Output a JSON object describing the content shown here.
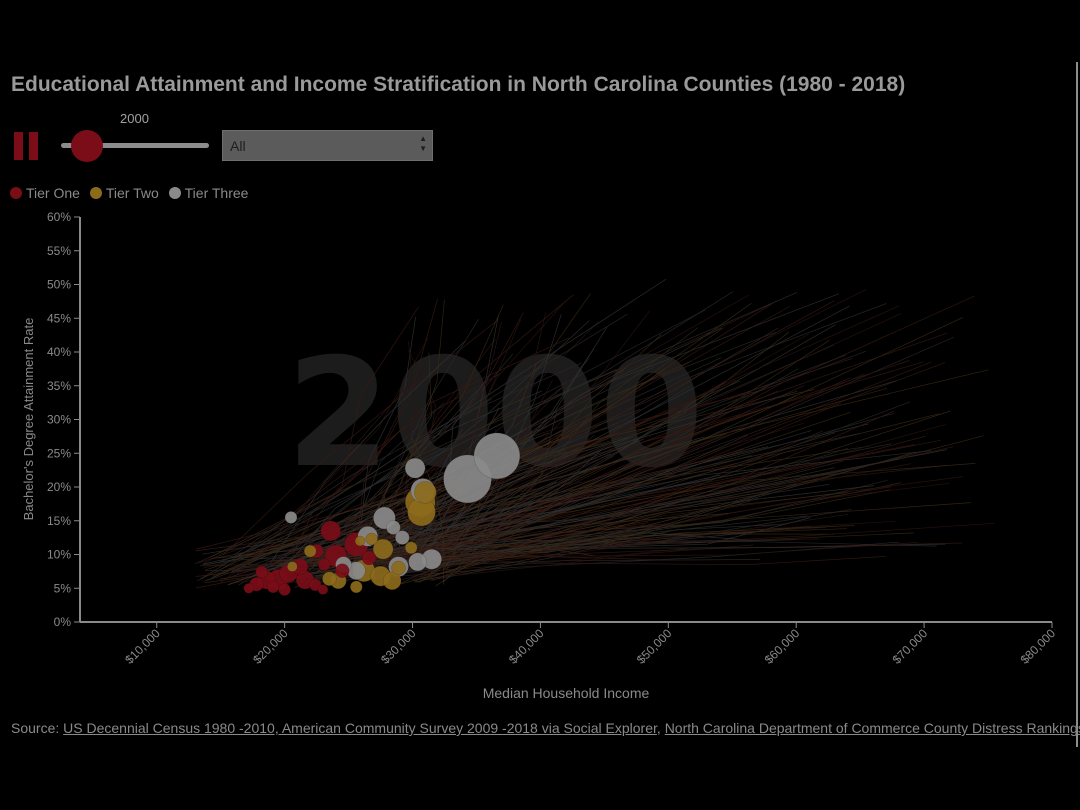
{
  "page": {
    "title": "Educational Attainment and Income Stratification in North Carolina Counties (1980 - 2018)"
  },
  "controls": {
    "play_state": "playing",
    "year": "2000",
    "slider": {
      "min": 1980,
      "max": 2018,
      "value": 2000
    },
    "county_select": {
      "value": "All"
    }
  },
  "legend": {
    "items": [
      {
        "label": "Tier One",
        "color": "#7a0d18"
      },
      {
        "label": "Tier Two",
        "color": "#8c6a1c"
      },
      {
        "label": "Tier Three",
        "color": "#8a8a8a"
      }
    ]
  },
  "source": {
    "prefix": "Source:",
    "link1": "US Decennial Census 1980 -2010, American Community Survey 2009 -2018 via Social Explorer",
    "separator": ",",
    "link2": "North Carolina Department of Commerce County Distress Rankings"
  },
  "chart_data": {
    "type": "scatter",
    "title": "Educational Attainment and Income Stratification in North Carolina Counties (1980 - 2018)",
    "xlabel": "Median Household Income",
    "ylabel": "Bachelor's Degree Attainment Rate",
    "year_watermark": "2000",
    "xlim": [
      4000,
      80000
    ],
    "ylim": [
      0,
      60
    ],
    "x_ticks": [
      "$10,000",
      "$20,000",
      "$30,000",
      "$40,000",
      "$50,000",
      "$60,000",
      "$70,000",
      "$80,000"
    ],
    "x_tick_values": [
      10000,
      20000,
      30000,
      40000,
      50000,
      60000,
      70000,
      80000
    ],
    "y_ticks": [
      "0%",
      "5%",
      "10%",
      "15%",
      "20%",
      "25%",
      "30%",
      "35%",
      "40%",
      "45%",
      "50%",
      "55%",
      "60%"
    ],
    "y_tick_values": [
      0,
      5,
      10,
      15,
      20,
      25,
      30,
      35,
      40,
      45,
      50,
      55,
      60
    ],
    "grid": false,
    "legend_position": "top-left",
    "series": [
      {
        "name": "Tier One",
        "color": "#7a0d18",
        "points": [
          {
            "x": 23600,
            "y": 13.5,
            "r": 10
          },
          {
            "x": 25600,
            "y": 11.5,
            "r": 12
          },
          {
            "x": 24000,
            "y": 9.8,
            "r": 11
          },
          {
            "x": 22500,
            "y": 10.5,
            "r": 7
          },
          {
            "x": 21200,
            "y": 8.2,
            "r": 8
          },
          {
            "x": 20300,
            "y": 7.2,
            "r": 9
          },
          {
            "x": 19500,
            "y": 6.3,
            "r": 10
          },
          {
            "x": 18600,
            "y": 6.2,
            "r": 9
          },
          {
            "x": 17800,
            "y": 5.6,
            "r": 7
          },
          {
            "x": 17200,
            "y": 5.0,
            "r": 5
          },
          {
            "x": 18200,
            "y": 7.4,
            "r": 6
          },
          {
            "x": 19100,
            "y": 5.2,
            "r": 6
          },
          {
            "x": 21600,
            "y": 6.2,
            "r": 9
          },
          {
            "x": 22400,
            "y": 5.5,
            "r": 6
          },
          {
            "x": 23000,
            "y": 4.8,
            "r": 5
          },
          {
            "x": 20000,
            "y": 4.8,
            "r": 6
          },
          {
            "x": 24500,
            "y": 7.6,
            "r": 7
          },
          {
            "x": 23100,
            "y": 8.5,
            "r": 6
          },
          {
            "x": 26600,
            "y": 9.5,
            "r": 7
          }
        ]
      },
      {
        "name": "Tier Two",
        "color": "#8c6a1c",
        "points": [
          {
            "x": 30600,
            "y": 17.8,
            "r": 15
          },
          {
            "x": 30700,
            "y": 16.3,
            "r": 14
          },
          {
            "x": 31000,
            "y": 19.2,
            "r": 11
          },
          {
            "x": 27700,
            "y": 10.8,
            "r": 10
          },
          {
            "x": 26200,
            "y": 7.6,
            "r": 11
          },
          {
            "x": 27500,
            "y": 6.8,
            "r": 10
          },
          {
            "x": 28400,
            "y": 6.1,
            "r": 9
          },
          {
            "x": 24200,
            "y": 6.1,
            "r": 8
          },
          {
            "x": 25600,
            "y": 5.2,
            "r": 6
          },
          {
            "x": 22000,
            "y": 10.5,
            "r": 6
          },
          {
            "x": 29900,
            "y": 11.0,
            "r": 6
          },
          {
            "x": 20600,
            "y": 8.2,
            "r": 5
          },
          {
            "x": 26800,
            "y": 12.3,
            "r": 6
          },
          {
            "x": 23500,
            "y": 6.4,
            "r": 7
          },
          {
            "x": 28900,
            "y": 8.0,
            "r": 7
          },
          {
            "x": 25900,
            "y": 12.0,
            "r": 5
          }
        ]
      },
      {
        "name": "Tier Three",
        "color": "#8a8a8a",
        "points": [
          {
            "x": 36600,
            "y": 24.6,
            "r": 23
          },
          {
            "x": 34300,
            "y": 21.2,
            "r": 24
          },
          {
            "x": 30200,
            "y": 22.8,
            "r": 10
          },
          {
            "x": 30800,
            "y": 19.5,
            "r": 12
          },
          {
            "x": 27800,
            "y": 15.4,
            "r": 11
          },
          {
            "x": 26500,
            "y": 12.7,
            "r": 10
          },
          {
            "x": 28500,
            "y": 14.0,
            "r": 7
          },
          {
            "x": 20500,
            "y": 15.5,
            "r": 6
          },
          {
            "x": 31500,
            "y": 9.3,
            "r": 10
          },
          {
            "x": 30400,
            "y": 8.9,
            "r": 9
          },
          {
            "x": 28900,
            "y": 8.2,
            "r": 10
          },
          {
            "x": 25600,
            "y": 7.6,
            "r": 9
          },
          {
            "x": 29200,
            "y": 12.5,
            "r": 7
          },
          {
            "x": 24600,
            "y": 8.5,
            "r": 8
          }
        ]
      }
    ]
  }
}
